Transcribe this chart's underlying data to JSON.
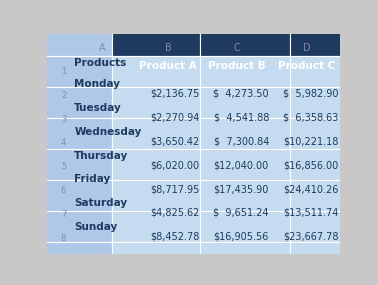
{
  "col_letters": [
    "A",
    "B",
    "C",
    "D"
  ],
  "row_numbers": [
    "1",
    "2",
    "3",
    "4",
    "5",
    "6",
    "7",
    "8"
  ],
  "header_row": [
    "Products",
    "Product A",
    "Product B",
    "Product C"
  ],
  "days": [
    "Monday",
    "Tuesday",
    "Wednesday",
    "Thursday",
    "Friday",
    "Saturday",
    "Sunday"
  ],
  "values": [
    [
      "$2,136.75",
      "$  4,273.50",
      "$  5,982.90"
    ],
    [
      "$2,270.94",
      "$  4,541.88",
      "$  6,358.63"
    ],
    [
      "$3,650.42",
      "$  7,300.84",
      "$10,221.18"
    ],
    [
      "$6,020.00",
      "$12,040.00",
      "$16,856.00"
    ],
    [
      "$8,717.95",
      "$17,435.90",
      "$24,410.26"
    ],
    [
      "$4,825.62",
      "$  9,651.24",
      "$13,511.74"
    ],
    [
      "$8,452.78",
      "$16,905.56",
      "$23,667.78"
    ]
  ],
  "color_navy_bg": "#1E3A5F",
  "color_yellow_bg": "#F2C832",
  "color_day_bg": "#AFC8E8",
  "color_data_bg": "#C5DCF0",
  "color_white_text": "#FFFFFF",
  "color_dark_text": "#1E3A5F",
  "color_gray_num": "#8888AA",
  "color_outer_bg": "#C8C8C8",
  "color_grid": "#FFFFFF",
  "color_triangle": "#9BAABA"
}
